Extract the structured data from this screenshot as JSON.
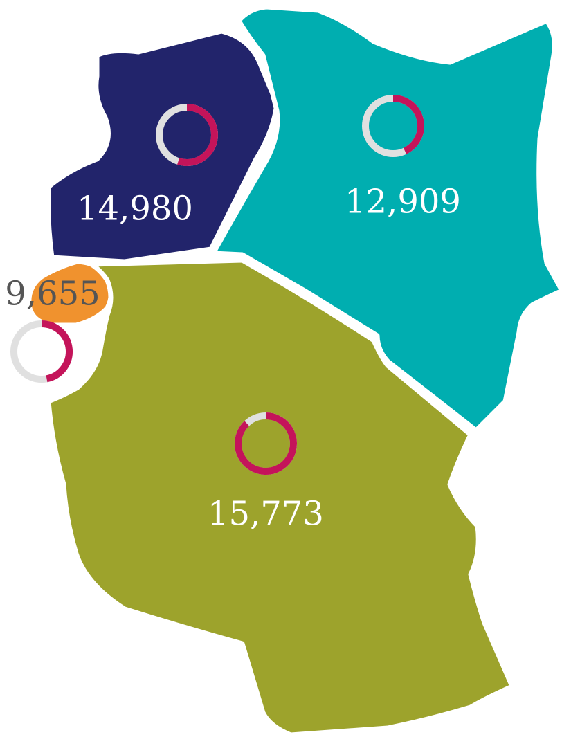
{
  "regions": [
    {
      "value": 14980,
      "value_label": "14,980",
      "share": 55,
      "color": "#22246b",
      "label_color": "#ffffff"
    },
    {
      "value": 12909,
      "value_label": "12,909",
      "share": 43,
      "color": "#00aeb0",
      "label_color": "#ffffff"
    },
    {
      "value": 9655,
      "value_label": "9,655",
      "share": 47,
      "color": "#f0922e",
      "label_color": "#555555"
    },
    {
      "value": 15773,
      "value_label": "15,773",
      "share": 88,
      "color": "#9da32c",
      "label_color": "#ffffff"
    }
  ],
  "share_color": "#c4145a",
  "rest_color": "#e0e0e0"
}
